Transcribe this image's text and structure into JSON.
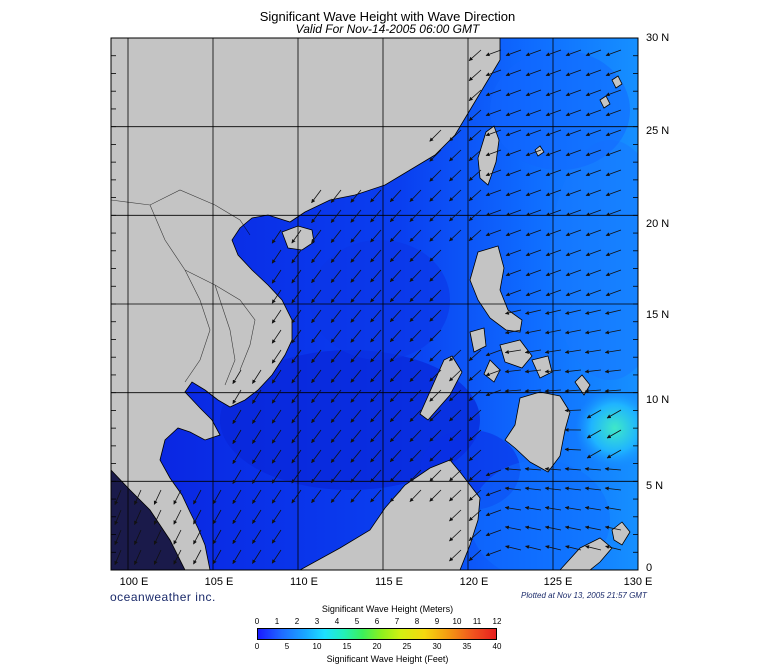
{
  "title": "Significant Wave Height with Wave Direction",
  "subtitle": "Valid For Nov-14-2005 06:00 GMT",
  "lon_labels": [
    "100 E",
    "105 E",
    "110 E",
    "115 E",
    "120 E",
    "125 E",
    "130 E"
  ],
  "lat_labels": [
    "30 N",
    "25 N",
    "20 N",
    "15 N",
    "10 N",
    "5 N",
    "0"
  ],
  "brand": "oceanweather inc.",
  "plotted": "Plotted at Nov 13, 2005 21:57 GMT",
  "legend": {
    "meters_title": "Significant Wave Height (Meters)",
    "feet_title": "Significant Wave Height (Feet)",
    "meters_ticks": [
      "0",
      "1",
      "2",
      "3",
      "4",
      "5",
      "6",
      "7",
      "8",
      "9",
      "10",
      "11",
      "12"
    ],
    "feet_ticks": [
      "0",
      "5",
      "10",
      "15",
      "20",
      "25",
      "30",
      "35",
      "40"
    ]
  },
  "map": {
    "lon_range": [
      99,
      130
    ],
    "lat_range": [
      0,
      30
    ],
    "land_color": "#c4c4c4",
    "sea_low_color": "#0a2fe0",
    "sea_high_color": "#17b8ff",
    "peak_color": "#2de0d0"
  }
}
